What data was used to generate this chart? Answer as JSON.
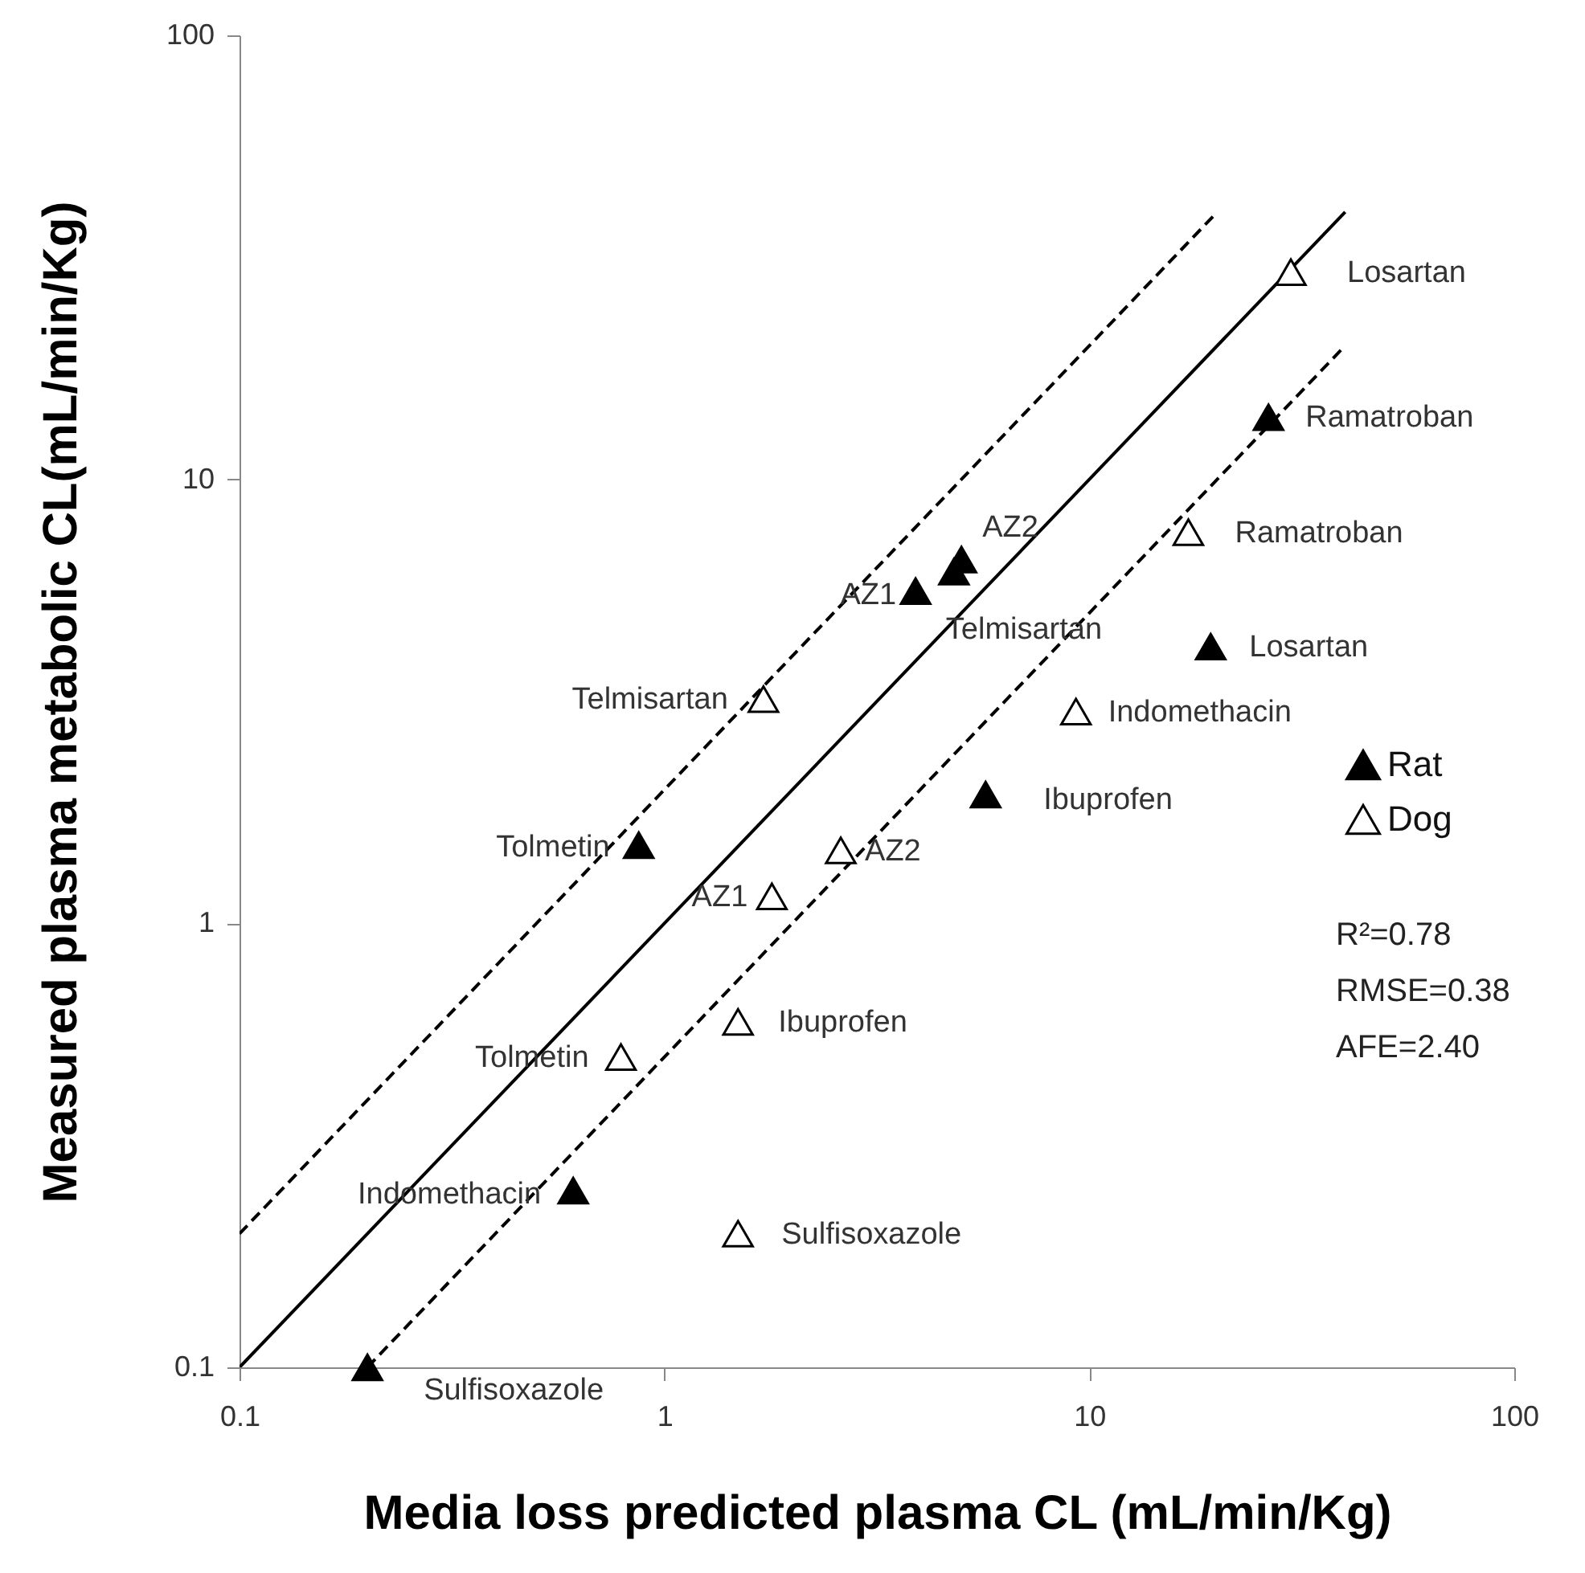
{
  "chart_data": {
    "type": "scatter",
    "xlabel": "Media loss predicted plasma CL (mL/min/Kg)",
    "ylabel": "Measured plasma metabolic CL(mL/min/Kg)",
    "log": "xy",
    "xlim": [
      0.1,
      100
    ],
    "ylim": [
      0.1,
      100
    ],
    "xticks": [
      0.1,
      1,
      10,
      100
    ],
    "yticks": [
      0.1,
      1,
      10,
      100
    ],
    "grid": false,
    "legend": "right",
    "marker": "triangle",
    "series": [
      {
        "type": "line",
        "color": "#000000",
        "line_style": "solid",
        "marker": "none",
        "x": [
          0.1,
          40
        ],
        "values": [
          0.1,
          40
        ]
      },
      {
        "type": "line",
        "color": "#000000",
        "line_style": "dashed",
        "marker": "none",
        "x": [
          0.1,
          20
        ],
        "values": [
          0.2,
          40
        ]
      },
      {
        "type": "line",
        "color": "#000000",
        "line_style": "dashed",
        "marker": "none",
        "x": [
          0.2,
          40
        ],
        "values": [
          0.1,
          20
        ]
      },
      {
        "name": "Rat",
        "color": "#000000",
        "x": [
          0.2,
          0.61,
          0.87,
          3.9,
          4.8,
          5.0,
          19.3,
          26.4,
          5.7
        ],
        "values": [
          0.1,
          0.25,
          1.5,
          5.6,
          6.2,
          6.6,
          4.2,
          13.8,
          1.95
        ],
        "value_labels": [
          "Sulfisoxazole",
          "Indomethacin",
          "Tolmetin",
          "AZ1",
          "Telmisartan",
          "AZ2",
          "Losartan",
          "Ramatroban",
          "Ibuprofen"
        ]
      },
      {
        "name": "Dog",
        "color": "#ffffff",
        "x": [
          1.71,
          0.79,
          1.79,
          2.6,
          1.49,
          1.49,
          9.3,
          17.1,
          29.8
        ],
        "values": [
          3.2,
          0.5,
          1.15,
          1.46,
          0.6,
          0.2,
          3.0,
          7.6,
          29.3
        ],
        "value_labels": [
          "Telmisartan",
          "Tolmetin",
          "AZ1",
          "AZ2",
          "Ibuprofen",
          "Sulfisoxazole",
          "Indomethacin",
          "Ramatroban",
          "Losartan"
        ]
      }
    ],
    "annotations": [
      "R²=0.78",
      "RMSE=0.38",
      "AFE=2.40"
    ]
  }
}
